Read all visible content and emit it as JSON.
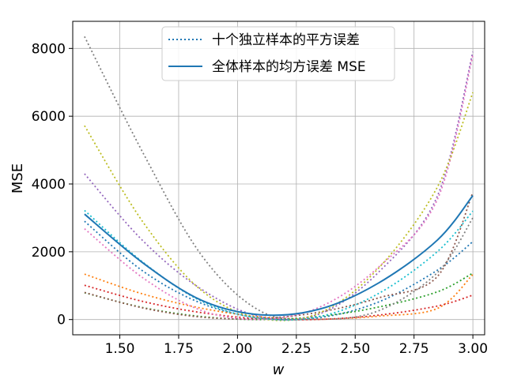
{
  "chart_data": {
    "type": "line",
    "xlabel": "w",
    "ylabel": "MSE",
    "xlim": [
      1.3,
      3.05
    ],
    "ylim": [
      -450,
      8800
    ],
    "xticks": [
      "1.50",
      "1.75",
      "2.00",
      "2.25",
      "2.50",
      "2.75",
      "3.00"
    ],
    "yticks": [
      "0",
      "2000",
      "4000",
      "6000",
      "8000"
    ],
    "grid": true,
    "legend_position": "top-center",
    "legend": [
      {
        "label": "十个独立样本的平方误差",
        "style": "dotted",
        "color": "#1f77b4"
      },
      {
        "label": "全体样本的均方误差 MSE",
        "style": "solid",
        "color": "#1f77b4"
      }
    ],
    "x": [
      1.35,
      1.6,
      1.85,
      2.1,
      2.35,
      2.6,
      2.85,
      3.0
    ],
    "series": [
      {
        "color": "#1f77b4",
        "dashed": true,
        "values": [
          2900,
          1420,
          470,
          40,
          60,
          520,
          1460,
          2300
        ]
      },
      {
        "color": "#ff7f0e",
        "dashed": true,
        "values": [
          1340,
          750,
          330,
          80,
          10,
          100,
          330,
          1330
        ]
      },
      {
        "color": "#2ca02c",
        "dashed": true,
        "values": [
          790,
          350,
          85,
          0,
          95,
          370,
          820,
          1370
        ]
      },
      {
        "color": "#d62728",
        "dashed": true,
        "values": [
          1010,
          530,
          200,
          20,
          5,
          130,
          400,
          720
        ]
      },
      {
        "color": "#9467bd",
        "dashed": true,
        "values": [
          4300,
          2310,
          880,
          80,
          170,
          1400,
          3660,
          7900
        ]
      },
      {
        "color": "#8c564b",
        "dashed": true,
        "values": [
          800,
          340,
          70,
          30,
          220,
          640,
          1280,
          3750
        ]
      },
      {
        "color": "#e377c2",
        "dashed": true,
        "values": [
          2680,
          1220,
          260,
          5,
          370,
          1550,
          3560,
          7800
        ]
      },
      {
        "color": "#7f7f7f",
        "dashed": true,
        "values": [
          8350,
          4900,
          1870,
          240,
          10,
          260,
          1390,
          3000
        ]
      },
      {
        "color": "#bcbd22",
        "dashed": true,
        "values": [
          5720,
          2860,
          840,
          30,
          200,
          1520,
          3920,
          6700
        ]
      },
      {
        "color": "#17becf",
        "dashed": true,
        "values": [
          3220,
          1680,
          530,
          35,
          90,
          770,
          2010,
          3200
        ]
      },
      {
        "color": "#1f77b4",
        "dashed": false,
        "values": [
          3110,
          1660,
          560,
          140,
          310,
          1080,
          2350,
          3660
        ]
      }
    ]
  }
}
